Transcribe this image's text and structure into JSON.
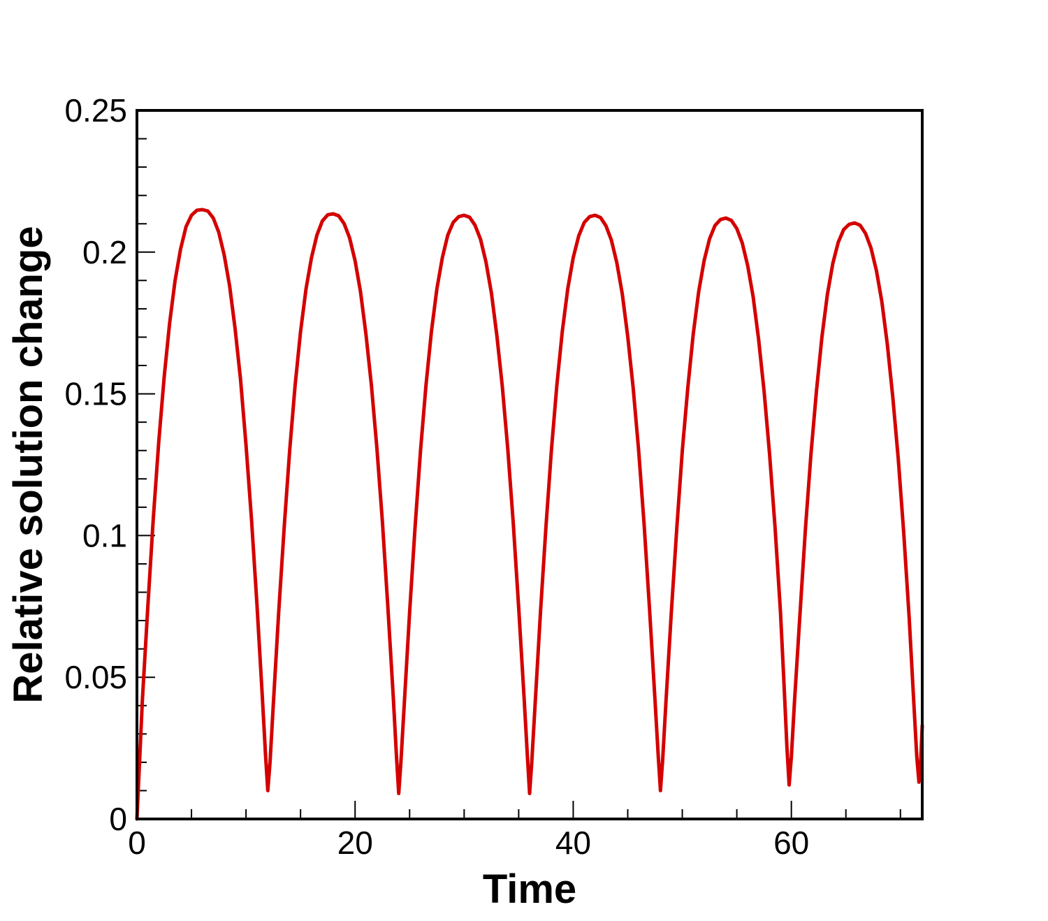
{
  "chart_data": {
    "type": "line",
    "title": "",
    "xlabel": "Time",
    "ylabel": "Relative solution change",
    "xlim": [
      0,
      72
    ],
    "ylim": [
      0,
      0.25
    ],
    "x_ticks": [
      {
        "value": 0,
        "label": "0"
      },
      {
        "value": 20,
        "label": "20"
      },
      {
        "value": 40,
        "label": "40"
      },
      {
        "value": 60,
        "label": "60"
      }
    ],
    "x_minor_step": 5,
    "y_ticks": [
      {
        "value": 0,
        "label": "0"
      },
      {
        "value": 0.05,
        "label": "0.05"
      },
      {
        "value": 0.1,
        "label": "0.1"
      },
      {
        "value": 0.15,
        "label": "0.15"
      },
      {
        "value": 0.2,
        "label": "0.2"
      },
      {
        "value": 0.25,
        "label": "0.25"
      }
    ],
    "y_minor_step": 0.01,
    "grid": false,
    "legend": "none",
    "series": [
      {
        "color": "#d40000",
        "points": [
          [
            0,
            0
          ],
          [
            0.5,
            0.042
          ],
          [
            1,
            0.075
          ],
          [
            1.5,
            0.106
          ],
          [
            2,
            0.133
          ],
          [
            2.5,
            0.156
          ],
          [
            3,
            0.175
          ],
          [
            3.5,
            0.19
          ],
          [
            4,
            0.201
          ],
          [
            4.5,
            0.209
          ],
          [
            5,
            0.213
          ],
          [
            5.5,
            0.2148
          ],
          [
            6,
            0.215
          ],
          [
            6.5,
            0.2145
          ],
          [
            7,
            0.212
          ],
          [
            7.5,
            0.207
          ],
          [
            8,
            0.199
          ],
          [
            8.5,
            0.188
          ],
          [
            9,
            0.173
          ],
          [
            9.5,
            0.155
          ],
          [
            10,
            0.132
          ],
          [
            10.5,
            0.106
          ],
          [
            11,
            0.076
          ],
          [
            11.5,
            0.043
          ],
          [
            11.8,
            0.022
          ],
          [
            12.0,
            0.01
          ],
          [
            12.2,
            0.02
          ],
          [
            12.5,
            0.04
          ],
          [
            13,
            0.073
          ],
          [
            13.5,
            0.103
          ],
          [
            14,
            0.13
          ],
          [
            14.5,
            0.153
          ],
          [
            15,
            0.172
          ],
          [
            15.5,
            0.187
          ],
          [
            16,
            0.198
          ],
          [
            16.5,
            0.206
          ],
          [
            17,
            0.211
          ],
          [
            17.5,
            0.2132
          ],
          [
            18,
            0.2135
          ],
          [
            18.5,
            0.2128
          ],
          [
            19,
            0.21
          ],
          [
            19.5,
            0.205
          ],
          [
            20,
            0.197
          ],
          [
            20.5,
            0.186
          ],
          [
            21,
            0.171
          ],
          [
            21.5,
            0.153
          ],
          [
            22,
            0.131
          ],
          [
            22.5,
            0.105
          ],
          [
            23,
            0.075
          ],
          [
            23.5,
            0.043
          ],
          [
            23.8,
            0.022
          ],
          [
            24.0,
            0.009
          ],
          [
            24.2,
            0.02
          ],
          [
            24.5,
            0.04
          ],
          [
            25,
            0.073
          ],
          [
            25.5,
            0.103
          ],
          [
            26,
            0.13
          ],
          [
            26.5,
            0.153
          ],
          [
            27,
            0.172
          ],
          [
            27.5,
            0.187
          ],
          [
            28,
            0.198
          ],
          [
            28.5,
            0.206
          ],
          [
            29,
            0.2105
          ],
          [
            29.5,
            0.2125
          ],
          [
            30,
            0.213
          ],
          [
            30.5,
            0.2123
          ],
          [
            31,
            0.2095
          ],
          [
            31.5,
            0.2045
          ],
          [
            32,
            0.1965
          ],
          [
            32.5,
            0.1855
          ],
          [
            33,
            0.1705
          ],
          [
            33.5,
            0.1525
          ],
          [
            34,
            0.1305
          ],
          [
            34.5,
            0.1045
          ],
          [
            35,
            0.0745
          ],
          [
            35.5,
            0.0425
          ],
          [
            35.8,
            0.022
          ],
          [
            36.0,
            0.009
          ],
          [
            36.2,
            0.02
          ],
          [
            36.5,
            0.04
          ],
          [
            37,
            0.073
          ],
          [
            37.5,
            0.103
          ],
          [
            38,
            0.13
          ],
          [
            38.5,
            0.153
          ],
          [
            39,
            0.172
          ],
          [
            39.5,
            0.187
          ],
          [
            40,
            0.198
          ],
          [
            40.5,
            0.2057
          ],
          [
            41,
            0.2104
          ],
          [
            41.5,
            0.2125
          ],
          [
            42,
            0.213
          ],
          [
            42.5,
            0.2122
          ],
          [
            43,
            0.2093
          ],
          [
            43.5,
            0.2042
          ],
          [
            44,
            0.1962
          ],
          [
            44.5,
            0.1852
          ],
          [
            45,
            0.1702
          ],
          [
            45.5,
            0.152
          ],
          [
            46,
            0.13
          ],
          [
            46.5,
            0.104
          ],
          [
            47,
            0.074
          ],
          [
            47.5,
            0.042
          ],
          [
            47.8,
            0.022
          ],
          [
            48.0,
            0.01
          ],
          [
            48.2,
            0.021
          ],
          [
            48.5,
            0.041
          ],
          [
            49,
            0.073
          ],
          [
            49.5,
            0.103
          ],
          [
            50,
            0.13
          ],
          [
            50.5,
            0.152
          ],
          [
            51,
            0.171
          ],
          [
            51.5,
            0.186
          ],
          [
            52,
            0.197
          ],
          [
            52.5,
            0.2047
          ],
          [
            53,
            0.2094
          ],
          [
            53.5,
            0.2115
          ],
          [
            54,
            0.212
          ],
          [
            54.5,
            0.2112
          ],
          [
            55,
            0.2083
          ],
          [
            55.5,
            0.2032
          ],
          [
            56,
            0.1952
          ],
          [
            56.5,
            0.1842
          ],
          [
            57,
            0.1692
          ],
          [
            57.5,
            0.151
          ],
          [
            58,
            0.129
          ],
          [
            58.5,
            0.103
          ],
          [
            59,
            0.073
          ],
          [
            59.3,
            0.05
          ],
          [
            59.6,
            0.025
          ],
          [
            59.8,
            0.012
          ],
          [
            60.0,
            0.022
          ],
          [
            60.3,
            0.042
          ],
          [
            60.8,
            0.073
          ],
          [
            61.3,
            0.103
          ],
          [
            61.8,
            0.129
          ],
          [
            62.3,
            0.151
          ],
          [
            62.8,
            0.17
          ],
          [
            63.3,
            0.185
          ],
          [
            63.8,
            0.196
          ],
          [
            64.3,
            0.2035
          ],
          [
            64.8,
            0.208
          ],
          [
            65.3,
            0.2098
          ],
          [
            65.8,
            0.2103
          ],
          [
            66.3,
            0.2095
          ],
          [
            66.8,
            0.2066
          ],
          [
            67.3,
            0.2015
          ],
          [
            67.8,
            0.1935
          ],
          [
            68.3,
            0.1825
          ],
          [
            68.8,
            0.1675
          ],
          [
            69.3,
            0.149
          ],
          [
            69.8,
            0.127
          ],
          [
            70.3,
            0.101
          ],
          [
            70.8,
            0.071
          ],
          [
            71.2,
            0.043
          ],
          [
            71.5,
            0.022
          ],
          [
            71.7,
            0.013
          ],
          [
            71.85,
            0.02
          ],
          [
            72,
            0.033
          ]
        ]
      }
    ]
  }
}
